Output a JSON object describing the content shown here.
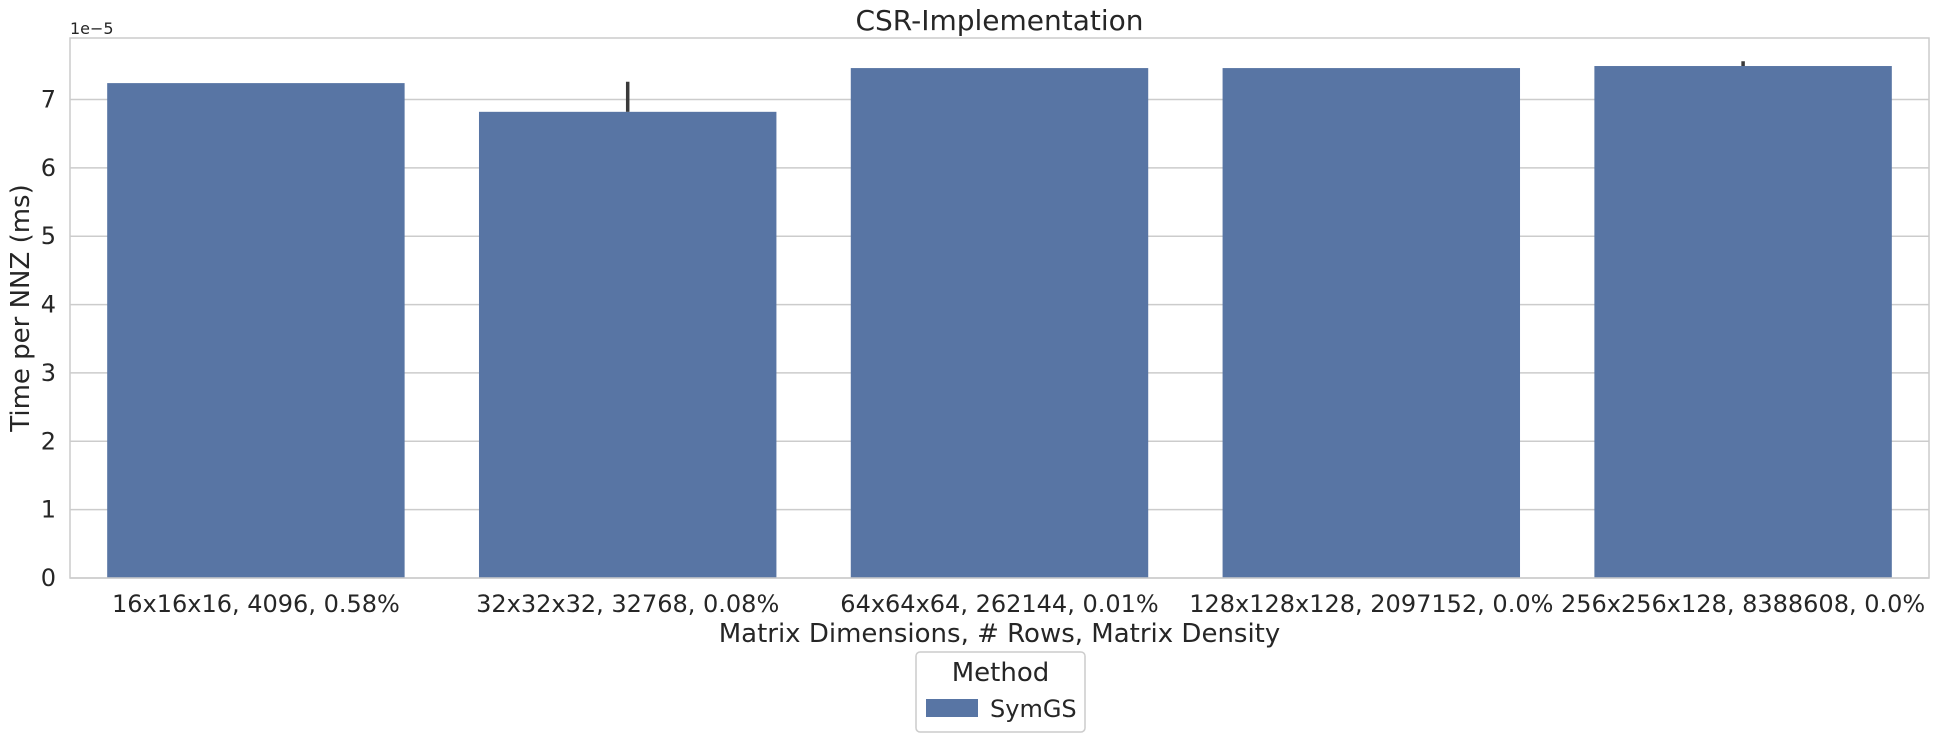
{
  "chart_data": {
    "type": "bar",
    "title": "CSR-Implementation",
    "xlabel": "Matrix Dimensions, # Rows, Matrix Density",
    "ylabel": "Time per NNZ (ms)",
    "y_offset_label": "1e−5",
    "ylim": [
      0,
      7.9
    ],
    "yticks": [
      0,
      1,
      2,
      3,
      4,
      5,
      6,
      7
    ],
    "categories": [
      "16x16x16, 4096, 0.58%",
      "32x32x32, 32768, 0.08%",
      "64x64x64, 262144, 0.01%",
      "128x128x128, 2097152, 0.0%",
      "256x256x128, 8388608, 0.0%"
    ],
    "series": [
      {
        "name": "SymGS",
        "color": "#5875a4",
        "values": [
          7.24,
          6.82,
          7.46,
          7.46,
          7.49
        ],
        "error": [
          [
            7.24,
            7.24
          ],
          [
            6.82,
            7.26
          ],
          [
            7.46,
            7.46
          ],
          [
            7.46,
            7.46
          ],
          [
            7.49,
            7.56
          ]
        ]
      }
    ],
    "grid": "y",
    "legend": {
      "title": "Method",
      "placement": "bottom-center"
    }
  }
}
